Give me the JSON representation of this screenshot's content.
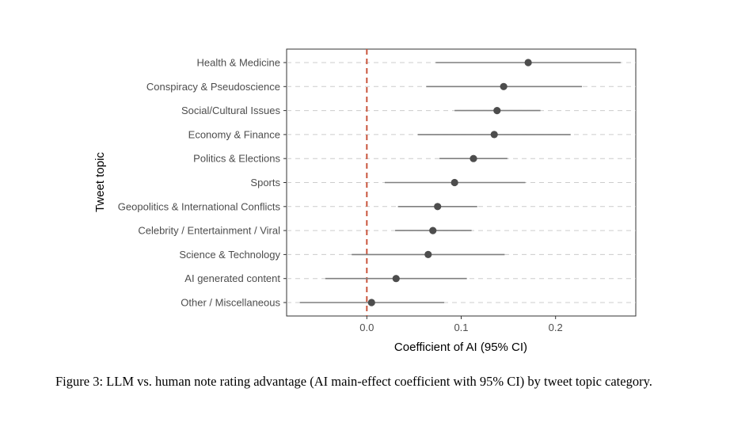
{
  "chart_data": {
    "type": "scatter",
    "subtype": "dot-and-whisker",
    "xlabel": "Coefficient of AI (95% CI)",
    "ylabel": "Tweet topic",
    "xlim": [
      -0.085,
      0.285
    ],
    "xticks": [
      0.0,
      0.1,
      0.2
    ],
    "xtick_labels": [
      "0.0",
      "0.1",
      "0.2"
    ],
    "reference_line": {
      "x": 0.0,
      "style": "dashed",
      "color": "#c9553d"
    },
    "grid": "horizontal dashed",
    "point_color": "#4d4d4d",
    "ci_color": "#7f7f7f",
    "categories": [
      "Health & Medicine",
      "Conspiracy & Pseudoscience",
      "Social/Cultural Issues",
      "Economy & Finance",
      "Politics & Elections",
      "Sports",
      "Geopolitics & International Conflicts",
      "Celebrity / Entertainment / Viral",
      "Science & Technology",
      "AI generated content",
      "Other / Miscellaneous"
    ],
    "estimates": [
      0.171,
      0.145,
      0.138,
      0.135,
      0.113,
      0.093,
      0.075,
      0.07,
      0.065,
      0.031,
      0.005
    ],
    "ci_low": [
      0.073,
      0.063,
      0.093,
      0.054,
      0.077,
      0.019,
      0.033,
      0.03,
      -0.016,
      -0.044,
      -0.071
    ],
    "ci_high": [
      0.269,
      0.228,
      0.184,
      0.216,
      0.149,
      0.168,
      0.117,
      0.111,
      0.146,
      0.106,
      0.082
    ]
  },
  "caption": "Figure 3: LLM vs. human note rating advantage (AI main-effect coefficient with 95% CI) by tweet topic category."
}
